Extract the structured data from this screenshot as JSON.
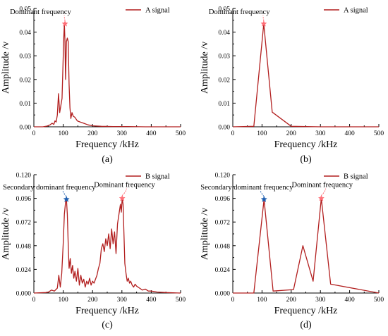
{
  "colors": {
    "signal": "#b21f1f",
    "dominant_marker": "#ff6f78",
    "secondary_marker": "#1f5fb0",
    "axis": "#000000"
  },
  "chart_data": [
    {
      "type": "line",
      "caption": "(a)",
      "xlabel": "Frequency /kHz",
      "ylabel": "Amplitude /v",
      "xlim": [
        0,
        500
      ],
      "ylim": [
        0,
        0.05
      ],
      "xticks": [
        "0",
        "100",
        "200",
        "300",
        "400",
        "500"
      ],
      "yticks": [
        "0.00",
        "0.01",
        "0.02",
        "0.03",
        "0.04",
        "0.05"
      ],
      "xtick_values": [
        0,
        100,
        200,
        300,
        400,
        500
      ],
      "ytick_values": [
        0,
        0.01,
        0.02,
        0.03,
        0.04,
        0.05
      ],
      "legend_position": "top-right",
      "series": [
        {
          "name": "A signal",
          "x": [
            0,
            30,
            45,
            55,
            62,
            68,
            72,
            76,
            80,
            84,
            88,
            92,
            96,
            99,
            102,
            104,
            106,
            108,
            111,
            114,
            117,
            120,
            123,
            126,
            130,
            134,
            140,
            148,
            158,
            170,
            185,
            200,
            230,
            270,
            320,
            380,
            440,
            500
          ],
          "y": [
            0,
            0,
            0.0003,
            0.0008,
            0.0015,
            0.001,
            0.0025,
            0.002,
            0.005,
            0.014,
            0.006,
            0.009,
            0.012,
            0.025,
            0.038,
            0.0435,
            0.036,
            0.02,
            0.036,
            0.0375,
            0.036,
            0.018,
            0.008,
            0.0035,
            0.006,
            0.0045,
            0.004,
            0.0025,
            0.002,
            0.0015,
            0.0008,
            0.0004,
            0.0002,
            0.0001,
            0.0001,
            0,
            0,
            0
          ]
        }
      ],
      "annotations": [
        {
          "text": "Dominant frequency",
          "x": 106,
          "y": 0.0435,
          "marker": "star",
          "color": "#ff6f78"
        }
      ]
    },
    {
      "type": "line",
      "caption": "(b)",
      "xlabel": "Frequency /kHz",
      "ylabel": "Amplitude /v",
      "xlim": [
        0,
        500
      ],
      "ylim": [
        0,
        0.05
      ],
      "xticks": [
        "0",
        "100",
        "200",
        "300",
        "400",
        "500"
      ],
      "yticks": [
        "0.00",
        "0.01",
        "0.02",
        "0.03",
        "0.04",
        "0.05"
      ],
      "xtick_values": [
        0,
        100,
        200,
        300,
        400,
        500
      ],
      "ytick_values": [
        0,
        0.01,
        0.02,
        0.03,
        0.04,
        0.05
      ],
      "legend_position": "top-right",
      "series": [
        {
          "name": "A signal",
          "x": [
            0,
            72,
            106,
            135,
            200,
            300,
            400,
            500
          ],
          "y": [
            0,
            0.0002,
            0.0435,
            0.0062,
            0.0002,
            0,
            0,
            0
          ]
        }
      ],
      "annotations": [
        {
          "text": "Dominant frequency",
          "x": 106,
          "y": 0.0435,
          "marker": "star",
          "color": "#ff6f78"
        }
      ]
    },
    {
      "type": "line",
      "caption": "(c)",
      "xlabel": "Frequency /kHz",
      "ylabel": "Amplitude /v",
      "xlim": [
        0,
        500
      ],
      "ylim": [
        0,
        0.12
      ],
      "xticks": [
        "0",
        "100",
        "200",
        "300",
        "400",
        "500"
      ],
      "yticks": [
        "0.000",
        "0.024",
        "0.048",
        "0.072",
        "0.096",
        "0.120"
      ],
      "xtick_values": [
        0,
        100,
        200,
        300,
        400,
        500
      ],
      "ytick_values": [
        0,
        0.024,
        0.048,
        0.072,
        0.096,
        0.12
      ],
      "legend_position": "top-right",
      "series": [
        {
          "name": "B signal",
          "x": [
            0,
            40,
            50,
            60,
            70,
            80,
            85,
            90,
            95,
            100,
            104,
            108,
            111,
            114,
            117,
            120,
            124,
            128,
            132,
            136,
            140,
            145,
            150,
            155,
            160,
            165,
            170,
            175,
            180,
            185,
            190,
            195,
            200,
            205,
            210,
            215,
            220,
            225,
            230,
            235,
            240,
            245,
            250,
            255,
            260,
            265,
            270,
            275,
            280,
            285,
            290,
            295,
            298,
            301,
            304,
            307,
            310,
            314,
            318,
            322,
            326,
            330,
            335,
            340,
            345,
            350,
            360,
            370,
            380,
            390,
            400,
            420,
            450,
            500
          ],
          "y": [
            0,
            0.0005,
            0.001,
            0.003,
            0.002,
            0.005,
            0.018,
            0.006,
            0.02,
            0.05,
            0.08,
            0.092,
            0.095,
            0.08,
            0.05,
            0.025,
            0.035,
            0.02,
            0.028,
            0.015,
            0.022,
            0.012,
            0.025,
            0.008,
            0.018,
            0.01,
            0.014,
            0.006,
            0.012,
            0.009,
            0.015,
            0.008,
            0.012,
            0.01,
            0.014,
            0.018,
            0.025,
            0.03,
            0.045,
            0.05,
            0.042,
            0.055,
            0.048,
            0.06,
            0.045,
            0.065,
            0.05,
            0.062,
            0.04,
            0.07,
            0.08,
            0.09,
            0.082,
            0.096,
            0.09,
            0.06,
            0.03,
            0.02,
            0.012,
            0.015,
            0.01,
            0.012,
            0.008,
            0.006,
            0.009,
            0.007,
            0.005,
            0.003,
            0.004,
            0.002,
            0.002,
            0.001,
            0.0005,
            0
          ]
        }
      ],
      "annotations": [
        {
          "text": "Dominant frequency",
          "x": 301,
          "y": 0.096,
          "marker": "star",
          "color": "#ff6f78"
        },
        {
          "text": "Secondary dominant frequency",
          "x": 111,
          "y": 0.095,
          "marker": "star",
          "color": "#1f5fb0"
        }
      ]
    },
    {
      "type": "line",
      "caption": "(d)",
      "xlabel": "Frequency /kHz",
      "ylabel": "Amplitude /v",
      "xlim": [
        0,
        500
      ],
      "ylim": [
        0,
        0.12
      ],
      "xticks": [
        "0",
        "100",
        "200",
        "300",
        "400",
        "500"
      ],
      "yticks": [
        "0.000",
        "0.024",
        "0.048",
        "0.072",
        "0.096",
        "0.120"
      ],
      "xtick_values": [
        0,
        100,
        200,
        300,
        400,
        500
      ],
      "ytick_values": [
        0,
        0.024,
        0.048,
        0.072,
        0.096,
        0.12
      ],
      "legend_position": "top-right",
      "series": [
        {
          "name": "B signal",
          "x": [
            0,
            72,
            107,
            138,
            208,
            240,
            275,
            303,
            335,
            500
          ],
          "y": [
            0,
            0,
            0.095,
            0.002,
            0.0035,
            0.048,
            0.012,
            0.096,
            0.009,
            0
          ]
        }
      ],
      "annotations": [
        {
          "text": "Dominant frequency",
          "x": 303,
          "y": 0.096,
          "marker": "star",
          "color": "#ff6f78"
        },
        {
          "text": "Secondary dominant frequency",
          "x": 107,
          "y": 0.095,
          "marker": "star",
          "color": "#1f5fb0"
        }
      ]
    }
  ]
}
